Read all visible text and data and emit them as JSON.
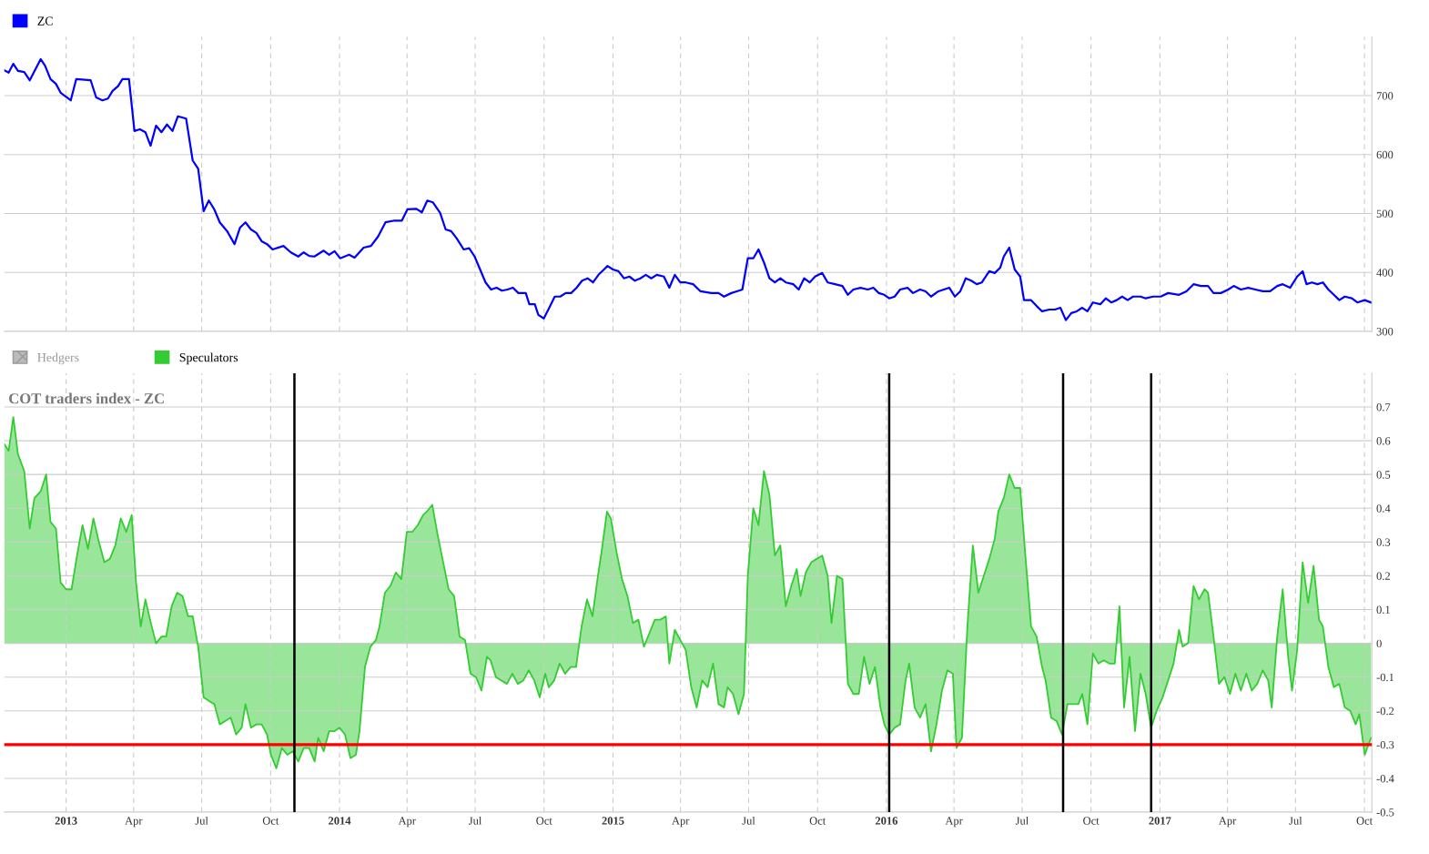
{
  "chart_data": [
    {
      "type": "line",
      "tick_labels": "y",
      "grid": true,
      "legend": "top left",
      "xlim": [
        2012.774,
        2017.775
      ],
      "ylim": [
        300,
        800
      ],
      "yticks": [
        300,
        400,
        500,
        600,
        700
      ],
      "xticks": [
        {
          "value": 2013,
          "label": null
        },
        {
          "value": 2013.247,
          "label": null
        },
        {
          "value": 2013.496,
          "label": null
        },
        {
          "value": 2013.748,
          "label": null
        },
        {
          "value": 2014,
          "label": null
        },
        {
          "value": 2014.247,
          "label": null
        },
        {
          "value": 2014.496,
          "label": null
        },
        {
          "value": 2014.748,
          "label": null
        },
        {
          "value": 2015,
          "label": null
        },
        {
          "value": 2015.247,
          "label": null
        },
        {
          "value": 2015.496,
          "label": null
        },
        {
          "value": 2015.748,
          "label": null
        },
        {
          "value": 2016,
          "label": null
        },
        {
          "value": 2016.247,
          "label": null
        },
        {
          "value": 2016.496,
          "label": null
        },
        {
          "value": 2016.748,
          "label": null
        },
        {
          "value": 2017,
          "label": null
        },
        {
          "value": 2017.247,
          "label": null
        },
        {
          "value": 2017.496,
          "label": null
        },
        {
          "value": 2017.748,
          "label": null
        }
      ],
      "series": [
        {
          "name": "ZC",
          "color": "#0000ff",
          "x": [
            2012.774,
            2012.79,
            2012.807,
            2012.824,
            2012.847,
            2012.867,
            2012.907,
            2012.923,
            2012.943,
            2012.963,
            2012.98,
            2013.017,
            2013.037,
            2013.09,
            2013.11,
            2013.133,
            2013.153,
            2013.17,
            2013.19,
            2013.206,
            2013.23,
            2013.25,
            2013.27,
            2013.29,
            2013.309,
            2013.329,
            2013.349,
            2013.369,
            2013.389,
            2013.409,
            2013.439,
            2013.463,
            2013.483,
            2013.503,
            2013.522,
            2013.542,
            2013.562,
            2013.589,
            2013.616,
            2013.636,
            2013.656,
            2013.676,
            2013.696,
            2013.715,
            2013.735,
            2013.755,
            2013.795,
            2013.822,
            2013.849,
            2013.869,
            2013.889,
            2013.908,
            2013.942,
            2013.962,
            2013.982,
            2014.002,
            2014.035,
            2014.055,
            2014.088,
            2014.115,
            2014.141,
            2014.168,
            2014.201,
            2014.228,
            2014.248,
            2014.281,
            2014.301,
            2014.321,
            2014.341,
            2014.368,
            2014.388,
            2014.408,
            2014.428,
            2014.454,
            2014.474,
            2014.494,
            2014.514,
            2014.534,
            2014.554,
            2014.574,
            2014.594,
            2014.614,
            2014.634,
            2014.654,
            2014.681,
            2014.694,
            2014.714,
            2014.727,
            2014.747,
            2014.767,
            2014.787,
            2014.807,
            2014.827,
            2014.847,
            2014.867,
            2014.887,
            2014.907,
            2014.927,
            2014.947,
            2014.967,
            2014.98,
            2015.0,
            2015.02,
            2015.04,
            2015.06,
            2015.08,
            2015.1,
            2015.12,
            2015.14,
            2015.16,
            2015.186,
            2015.206,
            2015.226,
            2015.246,
            2015.266,
            2015.293,
            2015.32,
            2015.359,
            2015.386,
            2015.406,
            2015.433,
            2015.453,
            2015.473,
            2015.493,
            2015.513,
            2015.532,
            2015.552,
            2015.572,
            2015.592,
            2015.612,
            2015.632,
            2015.659,
            2015.679,
            2015.699,
            2015.719,
            2015.739,
            2015.765,
            2015.785,
            2015.812,
            2015.839,
            2015.859,
            2015.879,
            2015.905,
            2015.932,
            2015.952,
            2015.972,
            2015.992,
            2016.01,
            2016.03,
            2016.05,
            2016.077,
            2016.097,
            2016.123,
            2016.143,
            2016.163,
            2016.19,
            2016.23,
            2016.25,
            2016.27,
            2016.29,
            2016.31,
            2016.33,
            2016.349,
            2016.376,
            2016.396,
            2016.416,
            2016.429,
            2016.449,
            2016.469,
            2016.489,
            2016.503,
            2016.529,
            2016.549,
            2016.569,
            2016.596,
            2016.616,
            2016.636,
            2016.656,
            2016.676,
            2016.696,
            2016.716,
            2016.735,
            2016.755,
            2016.782,
            2016.802,
            2016.822,
            2016.842,
            2016.862,
            2016.882,
            2016.902,
            2016.929,
            2016.948,
            2016.975,
            2017.003,
            2017.03,
            2017.07,
            2017.097,
            2017.123,
            2017.15,
            2017.176,
            2017.196,
            2017.223,
            2017.25,
            2017.27,
            2017.296,
            2017.323,
            2017.349,
            2017.376,
            2017.403,
            2017.429,
            2017.449,
            2017.476,
            2017.502,
            2017.522,
            2017.536,
            2017.556,
            2017.576,
            2017.596,
            2017.616,
            2017.636,
            2017.656,
            2017.676,
            2017.702,
            2017.722,
            2017.749,
            2017.772
          ],
          "values": [
            743,
            739,
            754,
            742,
            740,
            726,
            762,
            751,
            728,
            720,
            705,
            692,
            728,
            726,
            697,
            692,
            695,
            708,
            716,
            728,
            728,
            640,
            643,
            638,
            615,
            649,
            638,
            651,
            640,
            665,
            661,
            590,
            576,
            504,
            522,
            507,
            485,
            470,
            448,
            476,
            485,
            473,
            467,
            453,
            448,
            439,
            445,
            434,
            427,
            434,
            428,
            427,
            437,
            430,
            436,
            424,
            430,
            425,
            442,
            445,
            461,
            485,
            488,
            488,
            507,
            508,
            502,
            522,
            519,
            501,
            473,
            470,
            458,
            439,
            441,
            427,
            405,
            383,
            371,
            374,
            369,
            371,
            374,
            365,
            365,
            346,
            346,
            328,
            322,
            340,
            359,
            359,
            365,
            365,
            374,
            386,
            390,
            383,
            396,
            405,
            411,
            405,
            402,
            390,
            393,
            386,
            390,
            396,
            390,
            396,
            393,
            374,
            396,
            383,
            383,
            380,
            368,
            365,
            365,
            359,
            365,
            368,
            371,
            424,
            424,
            439,
            417,
            390,
            383,
            390,
            383,
            380,
            371,
            390,
            383,
            393,
            399,
            383,
            380,
            377,
            362,
            371,
            374,
            371,
            374,
            365,
            362,
            356,
            359,
            371,
            374,
            365,
            371,
            368,
            359,
            368,
            374,
            359,
            368,
            390,
            386,
            380,
            383,
            402,
            399,
            408,
            427,
            442,
            405,
            393,
            353,
            353,
            343,
            334,
            337,
            337,
            340,
            319,
            331,
            334,
            340,
            334,
            349,
            346,
            356,
            349,
            353,
            359,
            353,
            359,
            359,
            356,
            359,
            359,
            365,
            362,
            368,
            380,
            377,
            377,
            365,
            365,
            371,
            377,
            371,
            374,
            371,
            368,
            368,
            377,
            380,
            374,
            393,
            402,
            380,
            383,
            380,
            383,
            371,
            362,
            353,
            359,
            356,
            349,
            353,
            349
          ]
        }
      ]
    },
    {
      "type": "area",
      "title": "COT traders index - ZC",
      "legend": "top left",
      "grid": true,
      "annotations": [
        "Hedgers"
      ],
      "xlim": [
        2012.774,
        2017.775
      ],
      "ylim": [
        -0.5,
        0.8
      ],
      "yticks": [
        -0.5,
        -0.4,
        -0.3,
        -0.2,
        -0.1,
        0,
        0.1,
        0.2,
        0.3,
        0.4,
        0.5,
        0.6,
        0.7
      ],
      "xticks": [
        2013,
        {
          "value": 2013.247,
          "label": "Apr"
        },
        {
          "value": 2013.496,
          "label": "Jul"
        },
        {
          "value": 2013.748,
          "label": "Oct"
        },
        2014,
        {
          "value": 2014.247,
          "label": "Apr"
        },
        {
          "value": 2014.496,
          "label": "Jul"
        },
        {
          "value": 2014.748,
          "label": "Oct"
        },
        2015,
        {
          "value": 2015.247,
          "label": "Apr"
        },
        {
          "value": 2015.496,
          "label": "Jul"
        },
        {
          "value": 2015.748,
          "label": "Oct"
        },
        2016,
        {
          "value": 2016.247,
          "label": "Apr"
        },
        {
          "value": 2016.496,
          "label": "Jul"
        },
        {
          "value": 2016.748,
          "label": "Oct"
        },
        2017,
        {
          "value": 2017.247,
          "label": "Apr"
        },
        {
          "value": 2017.496,
          "label": "Jul"
        },
        {
          "value": 2017.748,
          "label": "Oct"
        }
      ],
      "ref_lines": [
        {
          "axis": "y",
          "value": -0.3,
          "color": "#ff0000"
        },
        {
          "axis": "x",
          "value": 2013.835,
          "color": "#000000"
        },
        {
          "axis": "x",
          "value": 2016.01,
          "color": "#000000"
        },
        {
          "axis": "x",
          "value": 2016.646,
          "color": "#000000"
        },
        {
          "axis": "x",
          "value": 2016.968,
          "color": "#000000"
        }
      ],
      "series": [
        {
          "name": "Speculators",
          "color": "#33cc33",
          "x": [
            2012.774,
            2012.79,
            2012.807,
            2012.824,
            2012.847,
            2012.867,
            2012.884,
            2012.907,
            2012.927,
            2012.943,
            2012.963,
            2012.98,
            2013.0,
            2013.02,
            2013.04,
            2013.06,
            2013.08,
            2013.1,
            2013.12,
            2013.14,
            2013.16,
            2013.18,
            2013.2,
            2013.22,
            2013.24,
            2013.256,
            2013.273,
            2013.29,
            2013.31,
            2013.329,
            2013.349,
            2013.366,
            2013.386,
            2013.406,
            2013.426,
            2013.446,
            2013.463,
            2013.483,
            2013.503,
            2013.522,
            2013.542,
            2013.562,
            2013.582,
            2013.602,
            2013.622,
            2013.642,
            2013.656,
            2013.676,
            2013.696,
            2013.715,
            2013.735,
            2013.749,
            2013.769,
            2013.789,
            2013.809,
            2013.829,
            2013.849,
            2013.869,
            2013.889,
            2013.909,
            2013.922,
            2013.942,
            2013.962,
            2013.982,
            2014.0,
            2014.02,
            2014.04,
            2014.06,
            2014.073,
            2014.093,
            2014.113,
            2014.133,
            2014.146,
            2014.166,
            2014.186,
            2014.206,
            2014.226,
            2014.246,
            2014.266,
            2014.286,
            2014.306,
            2014.319,
            2014.339,
            2014.359,
            2014.379,
            2014.399,
            2014.419,
            2014.439,
            2014.459,
            2014.479,
            2014.499,
            2014.519,
            2014.539,
            2014.552,
            2014.572,
            2014.592,
            2014.612,
            2014.632,
            2014.652,
            2014.672,
            2014.692,
            2014.712,
            2014.732,
            2014.752,
            2014.765,
            2014.785,
            2014.805,
            2014.825,
            2014.845,
            2014.865,
            2014.885,
            2014.905,
            2014.925,
            2014.945,
            2014.958,
            2014.978,
            2014.992,
            2015.013,
            2015.033,
            2015.053,
            2015.073,
            2015.093,
            2015.113,
            2015.133,
            2015.153,
            2015.173,
            2015.193,
            2015.206,
            2015.226,
            2015.246,
            2015.266,
            2015.286,
            2015.306,
            2015.326,
            2015.346,
            2015.366,
            2015.386,
            2015.406,
            2015.419,
            2015.439,
            2015.459,
            2015.479,
            2015.493,
            2015.513,
            2015.532,
            2015.552,
            2015.572,
            2015.592,
            2015.612,
            2015.632,
            2015.652,
            2015.672,
            2015.686,
            2015.705,
            2015.725,
            2015.745,
            2015.765,
            2015.785,
            2015.799,
            2015.819,
            2015.839,
            2015.859,
            2015.879,
            2015.899,
            2015.918,
            2015.938,
            2015.958,
            2015.978,
            2015.992,
            2016.01,
            2016.03,
            2016.05,
            2016.07,
            2016.083,
            2016.103,
            2016.123,
            2016.143,
            2016.163,
            2016.183,
            2016.203,
            2016.223,
            2016.243,
            2016.256,
            2016.276,
            2016.296,
            2016.316,
            2016.336,
            2016.356,
            2016.376,
            2016.396,
            2016.409,
            2016.429,
            2016.449,
            2016.469,
            2016.489,
            2016.509,
            2016.529,
            2016.549,
            2016.569,
            2016.582,
            2016.602,
            2016.622,
            2016.642,
            2016.662,
            2016.682,
            2016.702,
            2016.716,
            2016.735,
            2016.755,
            2016.775,
            2016.795,
            2016.815,
            2016.835,
            2016.852,
            2016.869,
            2016.889,
            2016.909,
            2016.929,
            2016.948,
            2016.968,
            2016.988,
            2017.01,
            2017.03,
            2017.05,
            2017.07,
            2017.083,
            2017.103,
            2017.123,
            2017.143,
            2017.163,
            2017.176,
            2017.196,
            2017.216,
            2017.236,
            2017.256,
            2017.276,
            2017.296,
            2017.316,
            2017.336,
            2017.356,
            2017.376,
            2017.396,
            2017.409,
            2017.429,
            2017.449,
            2017.469,
            2017.483,
            2017.502,
            2017.522,
            2017.542,
            2017.562,
            2017.582,
            2017.596,
            2017.616,
            2017.636,
            2017.656,
            2017.676,
            2017.696,
            2017.716,
            2017.729,
            2017.749,
            2017.772
          ],
          "values": [
            0.59,
            0.57,
            0.67,
            0.56,
            0.51,
            0.34,
            0.43,
            0.45,
            0.5,
            0.36,
            0.34,
            0.18,
            0.16,
            0.16,
            0.26,
            0.35,
            0.28,
            0.37,
            0.3,
            0.24,
            0.25,
            0.29,
            0.37,
            0.33,
            0.38,
            0.18,
            0.05,
            0.13,
            0.06,
            0.0,
            0.02,
            0.02,
            0.11,
            0.15,
            0.14,
            0.08,
            0.08,
            -0.01,
            -0.16,
            -0.17,
            -0.18,
            -0.24,
            -0.23,
            -0.22,
            -0.27,
            -0.25,
            -0.18,
            -0.25,
            -0.24,
            -0.24,
            -0.27,
            -0.33,
            -0.37,
            -0.31,
            -0.33,
            -0.32,
            -0.35,
            -0.31,
            -0.31,
            -0.35,
            -0.28,
            -0.32,
            -0.26,
            -0.26,
            -0.25,
            -0.27,
            -0.34,
            -0.33,
            -0.26,
            -0.07,
            -0.01,
            0.01,
            0.05,
            0.15,
            0.17,
            0.21,
            0.19,
            0.33,
            0.33,
            0.35,
            0.38,
            0.39,
            0.41,
            0.32,
            0.24,
            0.16,
            0.14,
            0.02,
            0.01,
            -0.09,
            -0.1,
            -0.14,
            -0.04,
            -0.05,
            -0.1,
            -0.11,
            -0.12,
            -0.09,
            -0.12,
            -0.11,
            -0.08,
            -0.11,
            -0.16,
            -0.09,
            -0.13,
            -0.11,
            -0.06,
            -0.09,
            -0.07,
            -0.07,
            0.05,
            0.13,
            0.08,
            0.2,
            0.27,
            0.39,
            0.37,
            0.27,
            0.19,
            0.14,
            0.06,
            0.07,
            -0.01,
            0.03,
            0.07,
            0.07,
            0.08,
            -0.06,
            0.04,
            0.01,
            -0.02,
            -0.13,
            -0.19,
            -0.11,
            -0.13,
            -0.06,
            -0.18,
            -0.19,
            -0.13,
            -0.15,
            -0.21,
            -0.15,
            0.2,
            0.4,
            0.35,
            0.51,
            0.44,
            0.26,
            0.29,
            0.11,
            0.17,
            0.22,
            0.14,
            0.21,
            0.24,
            0.25,
            0.26,
            0.2,
            0.06,
            0.2,
            0.19,
            -0.12,
            -0.15,
            -0.15,
            -0.04,
            -0.12,
            -0.07,
            -0.19,
            -0.24,
            -0.27,
            -0.25,
            -0.24,
            -0.11,
            -0.06,
            -0.19,
            -0.22,
            -0.18,
            -0.32,
            -0.24,
            -0.14,
            -0.08,
            -0.09,
            -0.31,
            -0.28,
            0.05,
            0.29,
            0.15,
            0.2,
            0.25,
            0.31,
            0.39,
            0.43,
            0.5,
            0.46,
            0.46,
            0.25,
            0.05,
            0.02,
            -0.07,
            -0.11,
            -0.22,
            -0.23,
            -0.27,
            -0.18,
            -0.18,
            -0.18,
            -0.15,
            -0.24,
            -0.03,
            -0.06,
            -0.05,
            -0.06,
            -0.06,
            0.11,
            -0.19,
            -0.04,
            -0.26,
            -0.09,
            -0.15,
            -0.25,
            -0.2,
            -0.16,
            -0.11,
            -0.06,
            0.04,
            -0.01,
            0.0,
            0.17,
            0.13,
            0.16,
            0.15,
            0.02,
            -0.12,
            -0.1,
            -0.15,
            -0.09,
            -0.14,
            -0.09,
            -0.14,
            -0.12,
            -0.08,
            -0.11,
            -0.19,
            0.02,
            0.16,
            -0.04,
            -0.14,
            -0.02,
            0.24,
            0.12,
            0.23,
            0.07,
            0.05,
            -0.07,
            -0.13,
            -0.12,
            -0.19,
            -0.2,
            -0.24,
            -0.21,
            -0.33,
            -0.28
          ]
        }
      ]
    }
  ]
}
